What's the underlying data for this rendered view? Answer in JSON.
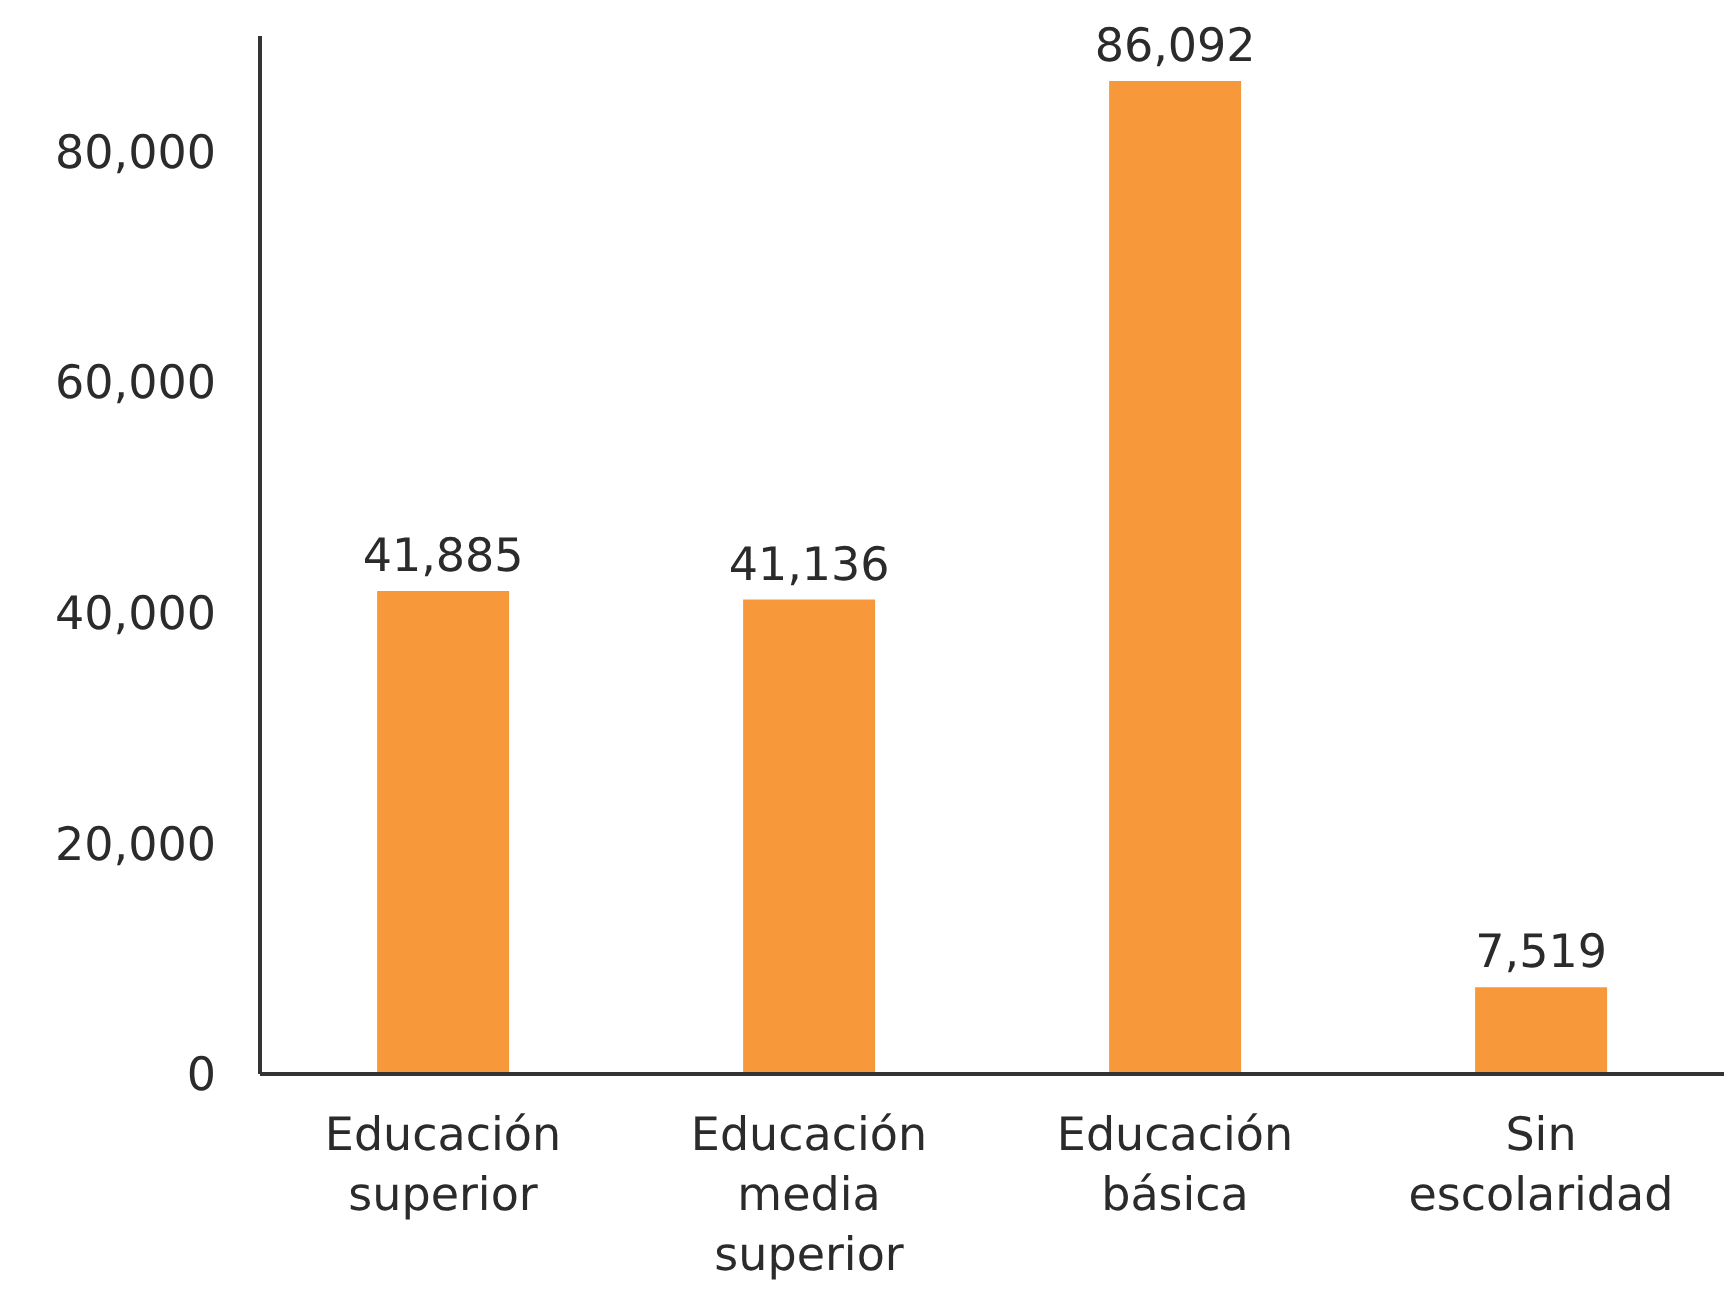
{
  "chart_data": {
    "type": "bar",
    "categories": [
      "Educación superior",
      "Educación media superior",
      "Educación básica",
      "Sin escolaridad"
    ],
    "values": [
      41885,
      41136,
      86092,
      7519
    ],
    "color": "#f7993a",
    "ylim": [
      0,
      90000
    ],
    "yticks": [
      {
        "value": 0,
        "label": "0"
      },
      {
        "value": 20000,
        "label": "20,000"
      },
      {
        "value": 40000,
        "label": "40,000"
      },
      {
        "value": 60000,
        "label": "60,000"
      },
      {
        "value": 80000,
        "label": "80,000"
      }
    ],
    "value_labels": [
      "41,885",
      "41,136",
      "86,092",
      "7,519"
    ],
    "grid": false,
    "legend": false
  }
}
